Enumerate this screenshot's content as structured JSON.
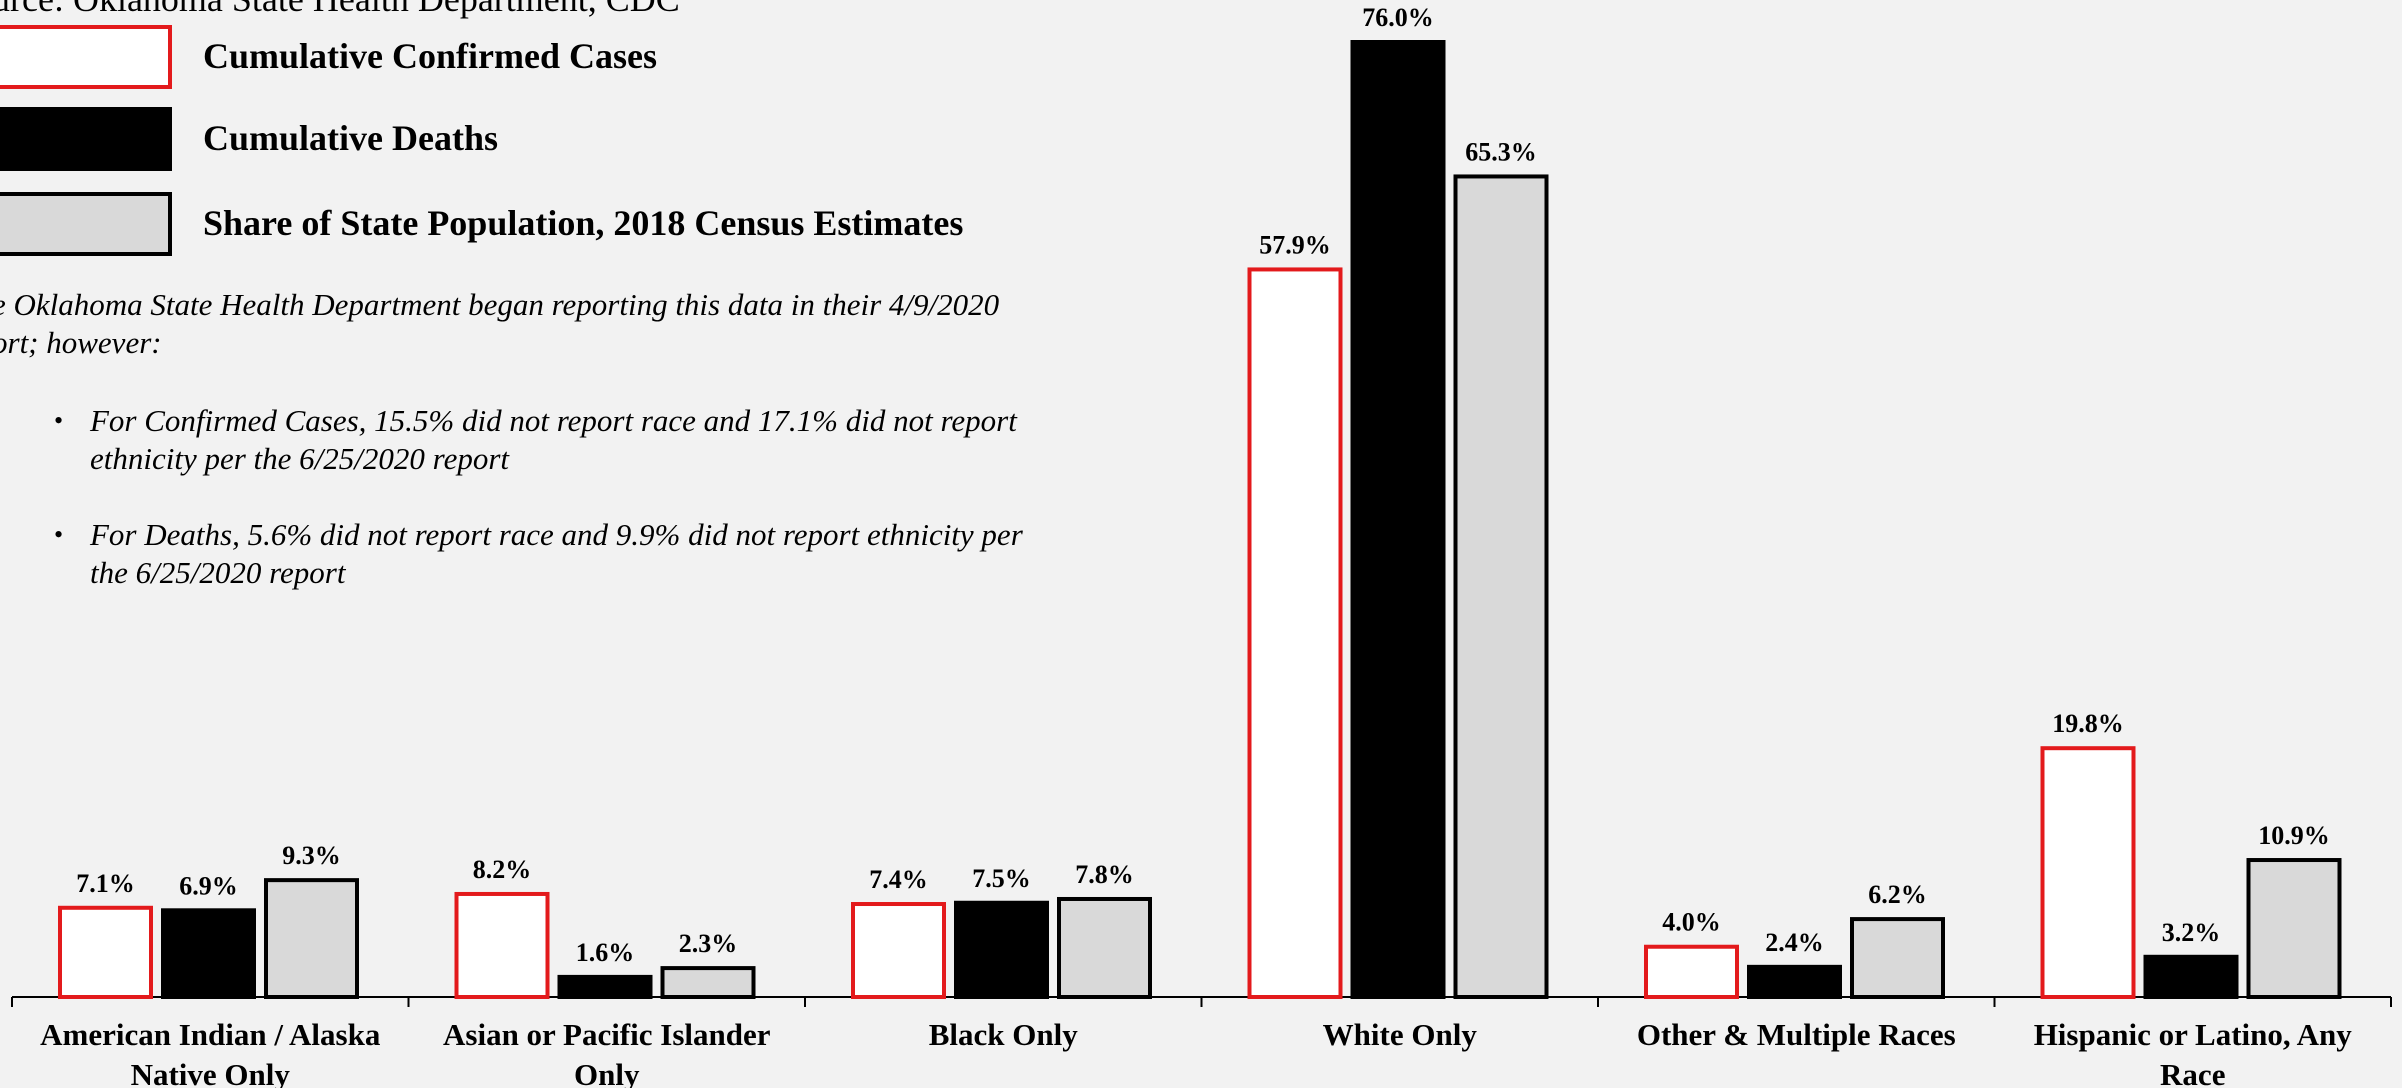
{
  "source": "urce: Oklahoma State Health Department, CDC",
  "legend": [
    {
      "label": "Cumulative Confirmed Cases",
      "fill": "#ffffff",
      "stroke": "#e31a1c"
    },
    {
      "label": "Cumulative Deaths",
      "fill": "#000000",
      "stroke": "#000000"
    },
    {
      "label": "Share of State Population, 2018 Census Estimates",
      "fill": "#d9d9d9",
      "stroke": "#000000"
    }
  ],
  "note": "e Oklahoma State Health Department began reporting this data in their 4/9/2020 ort; however:",
  "bullets": [
    "For Confirmed Cases, 15.5% did not report race and 17.1% did not report ethnicity per the 6/25/2020 report",
    "For Deaths, 5.6% did not report race and 9.9% did not report ethnicity per the 6/25/2020 report"
  ],
  "chart_data": {
    "type": "bar",
    "categories": [
      [
        "American Indian / Alaska",
        "Native Only"
      ],
      [
        "Asian or Pacific Islander",
        "Only"
      ],
      [
        "Black Only"
      ],
      [
        "White Only"
      ],
      [
        "Other & Multiple Races"
      ],
      [
        "Hispanic or Latino, Any",
        "Race"
      ]
    ],
    "series": [
      {
        "name": "Cumulative Confirmed Cases",
        "values": [
          7.1,
          8.2,
          7.4,
          57.9,
          4.0,
          19.8
        ],
        "fill": "#ffffff",
        "stroke": "#e31a1c"
      },
      {
        "name": "Cumulative Deaths",
        "values": [
          6.9,
          1.6,
          7.5,
          76.0,
          2.4,
          3.2
        ],
        "fill": "#000000",
        "stroke": "#000000"
      },
      {
        "name": "Share of State Population, 2018 Census Estimates",
        "values": [
          9.3,
          2.3,
          7.8,
          65.3,
          6.2,
          10.9
        ],
        "fill": "#d9d9d9",
        "stroke": "#000000"
      }
    ],
    "data_label_suffix": "%",
    "ylim": [
      0,
      76
    ],
    "grid": false,
    "legend_position": "top-left"
  }
}
